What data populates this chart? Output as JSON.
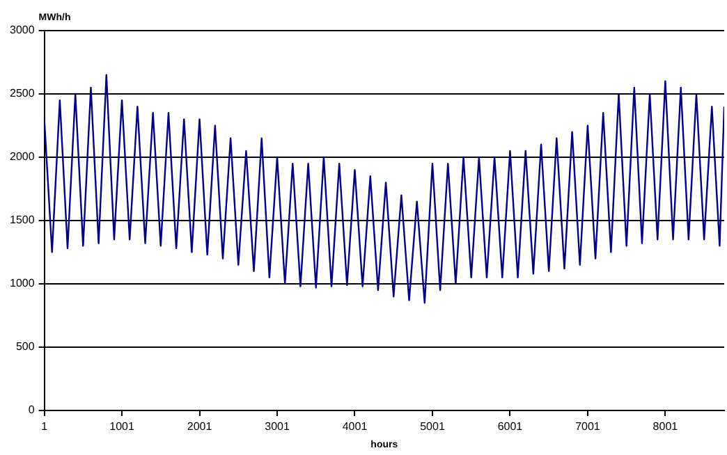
{
  "chart_data": {
    "type": "line",
    "xlabel": "hours",
    "ylabel": "MWh/h",
    "x": [
      1,
      101,
      201,
      301,
      401,
      501,
      601,
      701,
      801,
      901,
      1001,
      1101,
      1201,
      1301,
      1401,
      1501,
      1601,
      1701,
      1801,
      1901,
      2001,
      2101,
      2201,
      2301,
      2401,
      2501,
      2601,
      2701,
      2801,
      2901,
      3001,
      3101,
      3201,
      3301,
      3401,
      3501,
      3601,
      3701,
      3801,
      3901,
      4001,
      4101,
      4201,
      4301,
      4401,
      4501,
      4601,
      4701,
      4801,
      4901,
      5001,
      5101,
      5201,
      5301,
      5401,
      5501,
      5601,
      5701,
      5801,
      5901,
      6001,
      6101,
      6201,
      6301,
      6401,
      6501,
      6601,
      6701,
      6801,
      6901,
      7001,
      7101,
      7201,
      7301,
      7401,
      7501,
      7601,
      7701,
      7801,
      7901,
      8001,
      8101,
      8201,
      8301,
      8401,
      8501,
      8601,
      8701,
      8760
    ],
    "series": [
      {
        "color": "#000080",
        "values": [
          2300,
          1250,
          2450,
          1280,
          2500,
          1300,
          2550,
          1320,
          2650,
          1350,
          2450,
          1350,
          2400,
          1320,
          2350,
          1300,
          2350,
          1280,
          2300,
          1250,
          2300,
          1230,
          2250,
          1200,
          2150,
          1150,
          2050,
          1100,
          2150,
          1050,
          2000,
          1000,
          1950,
          980,
          1950,
          970,
          2000,
          980,
          1950,
          990,
          1900,
          980,
          1850,
          950,
          1800,
          900,
          1700,
          870,
          1650,
          850,
          1950,
          950,
          1950,
          1000,
          2000,
          1050,
          2000,
          1050,
          2000,
          1050,
          2050,
          1050,
          2050,
          1080,
          2100,
          1100,
          2150,
          1120,
          2200,
          1150,
          2250,
          1200,
          2350,
          1250,
          2500,
          1300,
          2550,
          1320,
          2500,
          1350,
          2600,
          1350,
          2550,
          1350,
          2500,
          1350,
          2400,
          1300,
          2400
        ]
      }
    ],
    "xlim": [
      1,
      8760
    ],
    "xticks": [
      1,
      1001,
      2001,
      3001,
      4001,
      5001,
      6001,
      7001,
      8001
    ],
    "ylim": [
      0,
      3000
    ],
    "yticks": [
      0,
      500,
      1000,
      1500,
      2000,
      2500,
      3000
    ],
    "grid": "y",
    "legend": false,
    "marker": "none",
    "line_style": "solid"
  }
}
